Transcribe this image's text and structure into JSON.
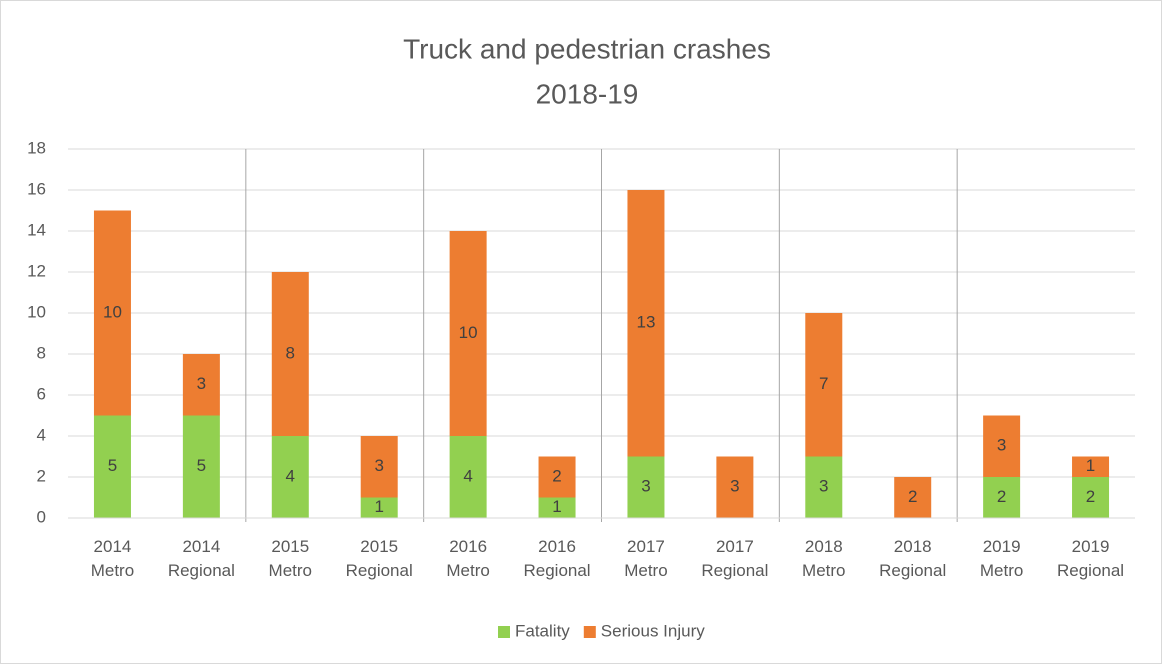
{
  "chart_data": {
    "type": "stacked-bar",
    "title": "Truck and pedestrian crashes",
    "subtitle": "2018-19",
    "categories": [
      [
        "2014",
        "Metro"
      ],
      [
        "2014",
        "Regional"
      ],
      [
        "2015",
        "Metro"
      ],
      [
        "2015",
        "Regional"
      ],
      [
        "2016",
        "Metro"
      ],
      [
        "2016",
        "Regional"
      ],
      [
        "2017",
        "Metro"
      ],
      [
        "2017",
        "Regional"
      ],
      [
        "2018",
        "Metro"
      ],
      [
        "2018",
        "Regional"
      ],
      [
        "2019",
        "Metro"
      ],
      [
        "2019",
        "Regional"
      ]
    ],
    "series": [
      {
        "name": "Fatality",
        "color": "#92d050",
        "values": [
          5,
          5,
          4,
          1,
          4,
          1,
          3,
          null,
          3,
          null,
          2,
          2
        ]
      },
      {
        "name": "Serious Injury",
        "color": "#ed7d31",
        "values": [
          10,
          3,
          8,
          3,
          10,
          2,
          13,
          3,
          7,
          2,
          3,
          1
        ]
      }
    ],
    "ylim": [
      0,
      18
    ],
    "yticks": [
      0,
      2,
      4,
      6,
      8,
      10,
      12,
      14,
      16,
      18
    ],
    "grid": true,
    "legend": "bottom"
  }
}
